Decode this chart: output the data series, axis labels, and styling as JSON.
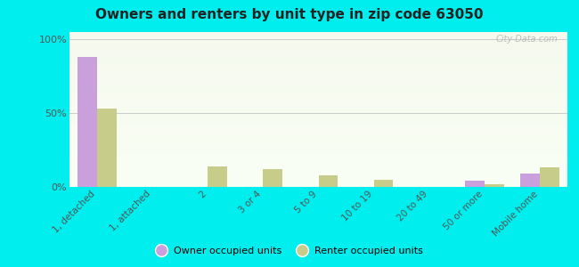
{
  "title": "Owners and renters by unit type in zip code 63050",
  "categories": [
    "1, detached",
    "1, attached",
    "2",
    "3 or 4",
    "5 to 9",
    "10 to 19",
    "20 to 49",
    "50 or more",
    "Mobile home"
  ],
  "owner_values": [
    88,
    0,
    0,
    0,
    0,
    0,
    0,
    4,
    9
  ],
  "renter_values": [
    53,
    0,
    14,
    12,
    8,
    5,
    0,
    2,
    13
  ],
  "owner_color": "#c9a0dc",
  "renter_color": "#c8cc8a",
  "background_color": "#00eeee",
  "ylabel_ticks": [
    "0%",
    "50%",
    "100%"
  ],
  "ytick_vals": [
    0,
    50,
    100
  ],
  "ylim": [
    0,
    105
  ],
  "bar_width": 0.35,
  "legend_owner": "Owner occupied units",
  "legend_renter": "Renter occupied units",
  "watermark": "City-Data.com",
  "plot_bg_top": "#f5f9ee",
  "plot_bg_bottom": "#fafff5"
}
